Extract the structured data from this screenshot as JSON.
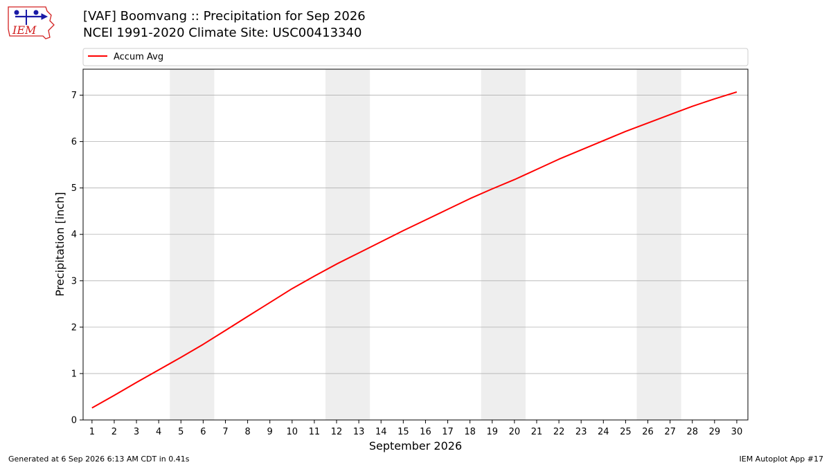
{
  "header": {
    "logo_text": "IEM",
    "title_line1": "[VAF] Boomvang :: Precipitation for Sep 2026",
    "title_line2": "NCEI 1991-2020 Climate Site: USC00413340"
  },
  "footer": {
    "generated": "Generated at 6 Sep 2026 6:13 AM CDT in 0.41s",
    "app": "IEM Autoplot App #17"
  },
  "colors": {
    "series": "#ff0000",
    "weekend_band": "#eeeeee",
    "grid": "#b0b0b0",
    "logo_blue": "#1a1aa6",
    "logo_red": "#d22020"
  },
  "chart_data": {
    "type": "line",
    "xlabel": "September 2026",
    "ylabel": "Precipitation [inch]",
    "xlim": [
      0.6,
      30.5
    ],
    "ylim": [
      0,
      7.56
    ],
    "x_ticks": [
      1,
      2,
      3,
      4,
      5,
      6,
      7,
      8,
      9,
      10,
      11,
      12,
      13,
      14,
      15,
      16,
      17,
      18,
      19,
      20,
      21,
      22,
      23,
      24,
      25,
      26,
      27,
      28,
      29,
      30
    ],
    "y_ticks": [
      0,
      1,
      2,
      3,
      4,
      5,
      6,
      7
    ],
    "grid": "horizontal",
    "legend_position": "top",
    "shaded_days": [
      [
        5,
        6
      ],
      [
        12,
        13
      ],
      [
        19,
        20
      ],
      [
        26,
        27
      ]
    ],
    "series": [
      {
        "name": "Accum Avg",
        "x": [
          1,
          2,
          3,
          4,
          5,
          6,
          7,
          8,
          9,
          10,
          11,
          12,
          13,
          14,
          15,
          16,
          17,
          18,
          19,
          20,
          21,
          22,
          23,
          24,
          25,
          26,
          27,
          28,
          29,
          30
        ],
        "values": [
          0.26,
          0.53,
          0.81,
          1.08,
          1.35,
          1.63,
          1.93,
          2.23,
          2.53,
          2.83,
          3.1,
          3.36,
          3.6,
          3.84,
          4.08,
          4.31,
          4.54,
          4.77,
          4.98,
          5.18,
          5.4,
          5.62,
          5.82,
          6.02,
          6.22,
          6.4,
          6.58,
          6.76,
          6.92,
          7.07
        ]
      }
    ]
  }
}
